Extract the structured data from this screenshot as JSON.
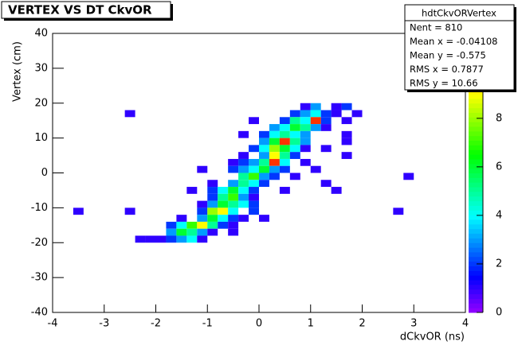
{
  "chart_data": {
    "type": "heatmap",
    "title": "VERTEX VS DT CkvOR",
    "x_label": "dCkvOR (ns)",
    "y_label": "Vertex (cm)",
    "xlim": [
      -4,
      4
    ],
    "ylim": [
      -40,
      40
    ],
    "zlim": [
      0,
      11.5
    ],
    "nbinsx": 40,
    "nbinsy": 40,
    "xticks": [
      -4,
      -3,
      -2,
      -1,
      0,
      1,
      2,
      3,
      4
    ],
    "yticks": [
      -40,
      -30,
      -20,
      -10,
      0,
      10,
      20,
      30,
      40
    ],
    "zticks": [
      0,
      2,
      4,
      6,
      8
    ],
    "stats": {
      "name": "hdtCkvORVertex",
      "lines": [
        "Nent = 810",
        "Mean x = -0.04108",
        "Mean y = -0.575",
        "RMS x = 0.7877",
        "RMS y =  10.66"
      ]
    },
    "cells": {
      "x": [
        0.9,
        1.1,
        1.5,
        1.7,
        -2.5,
        0.7,
        0.9,
        1.1,
        1.3,
        1.5,
        1.9,
        -0.1,
        0.5,
        0.7,
        0.9,
        1.1,
        1.3,
        1.7,
        0.3,
        0.5,
        0.7,
        0.9,
        1.1,
        1.3,
        -0.3,
        0.1,
        0.3,
        0.5,
        0.7,
        0.9,
        1.7,
        0.1,
        0.3,
        0.5,
        0.7,
        0.9,
        1.7,
        -0.1,
        0.1,
        0.3,
        0.5,
        0.7,
        0.9,
        1.3,
        -0.3,
        0.1,
        0.3,
        0.5,
        0.7,
        1.7,
        -0.5,
        -0.3,
        -0.1,
        0.1,
        0.3,
        0.5,
        0.9,
        -1.1,
        -0.5,
        -0.3,
        -0.1,
        0.1,
        0.3,
        0.5,
        1.1,
        -0.3,
        -0.1,
        0.1,
        0.3,
        0.7,
        2.9,
        -0.9,
        -0.5,
        -0.3,
        -0.1,
        0.1,
        1.3,
        -1.3,
        -0.9,
        -0.7,
        -0.5,
        -0.3,
        -0.1,
        0.5,
        1.5,
        -0.9,
        -0.7,
        -0.5,
        -0.3,
        -0.1,
        -1.1,
        -0.9,
        -0.7,
        -0.5,
        -0.3,
        -0.1,
        -3.5,
        -2.5,
        -1.1,
        -0.9,
        -0.7,
        -0.5,
        -0.1,
        2.7,
        -1.5,
        -1.1,
        -0.9,
        -0.7,
        -0.5,
        -0.3,
        0.1,
        -1.7,
        -1.5,
        -1.3,
        -1.1,
        -0.9,
        -0.7,
        -0.5,
        -1.7,
        -1.5,
        -1.3,
        -1.1,
        -0.9,
        -0.5,
        -2.3,
        -2.1,
        -1.9,
        -1.7,
        -1.5,
        -1.3,
        -1.1
      ],
      "y": [
        19,
        19,
        19,
        19,
        17,
        17,
        17,
        17,
        17,
        17,
        17,
        15,
        15,
        15,
        15,
        15,
        15,
        15,
        13,
        13,
        13,
        13,
        13,
        13,
        11,
        11,
        11,
        11,
        11,
        11,
        11,
        9,
        9,
        9,
        9,
        9,
        9,
        7,
        7,
        7,
        7,
        7,
        7,
        7,
        5,
        5,
        5,
        5,
        5,
        5,
        3,
        3,
        3,
        3,
        3,
        3,
        3,
        1,
        1,
        1,
        1,
        1,
        1,
        1,
        1,
        -1,
        -1,
        -1,
        -1,
        -1,
        -1,
        -3,
        -3,
        -3,
        -3,
        -3,
        -3,
        -5,
        -5,
        -5,
        -5,
        -5,
        -5,
        -5,
        -5,
        -7,
        -7,
        -7,
        -7,
        -7,
        -9,
        -9,
        -9,
        -9,
        -9,
        -9,
        -11,
        -11,
        -11,
        -11,
        -11,
        -11,
        -11,
        -11,
        -13,
        -13,
        -13,
        -13,
        -13,
        -13,
        -13,
        -15,
        -15,
        -15,
        -15,
        -15,
        -15,
        -15,
        -17,
        -17,
        -17,
        -17,
        -17,
        -17,
        -19,
        -19,
        -19,
        -19,
        -19,
        -19,
        -19
      ],
      "counts": [
        1,
        3,
        1,
        2,
        1,
        2,
        3,
        4,
        2,
        1,
        1,
        1,
        2,
        5,
        4,
        11,
        2,
        1,
        3,
        4,
        6,
        5,
        3,
        1,
        1,
        2,
        4,
        5,
        4,
        3,
        1,
        3,
        6,
        11,
        5,
        3,
        1,
        2,
        4,
        8,
        6,
        4,
        1,
        1,
        1,
        3,
        9,
        5,
        2,
        1,
        1,
        2,
        3,
        5,
        11,
        4,
        1,
        1,
        2,
        3,
        4,
        6,
        3,
        2,
        1,
        5,
        7,
        3,
        2,
        1,
        1,
        1,
        3,
        5,
        4,
        2,
        1,
        1,
        2,
        4,
        6,
        4,
        2,
        1,
        1,
        2,
        5,
        7,
        3,
        1,
        1,
        3,
        6,
        5,
        4,
        2,
        1,
        1,
        2,
        8,
        9,
        4,
        2,
        1,
        1,
        3,
        6,
        4,
        2,
        1,
        1,
        2,
        4,
        7,
        9,
        5,
        2,
        1,
        3,
        6,
        5,
        3,
        1,
        1,
        1,
        1,
        1,
        2,
        3,
        4,
        1
      ]
    }
  }
}
